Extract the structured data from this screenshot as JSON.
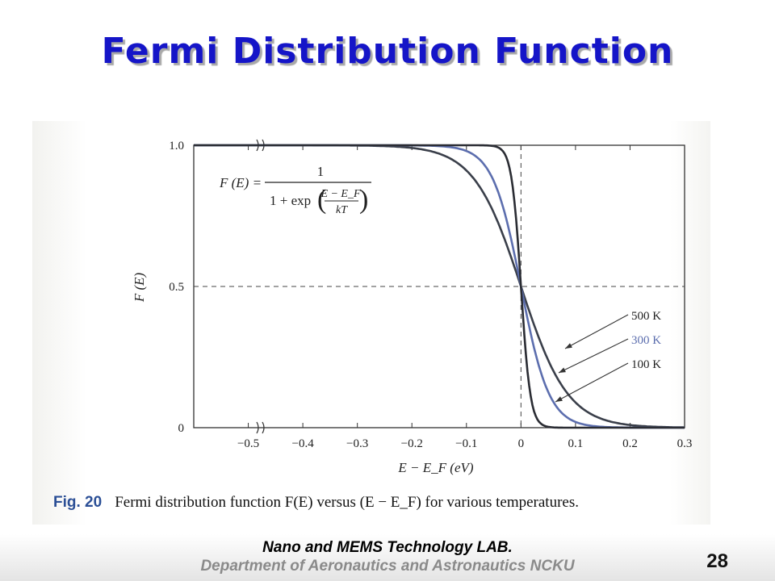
{
  "slide": {
    "title": "Fermi Distribution Function",
    "footer_lab": "Nano and MEMS Technology LAB.",
    "footer_dept": "Department of Aeronautics and Astronautics NCKU",
    "page_number": "28"
  },
  "caption": {
    "label": "Fig. 20",
    "text": "Fermi distribution function F(E) versus (E − E_F) for various temperatures."
  },
  "formula": {
    "lhs": "F (E) =",
    "numerator": "1",
    "denominator_prefix": "1 + exp",
    "exp_numerator": "E − E_F",
    "exp_denominator": "kT"
  },
  "colors": {
    "title": "#1515c8",
    "curve_500K": "#3a3f4a",
    "curve_300K": "#5c6eae",
    "curve_100K": "#2a2c33",
    "caption_label": "#2b4f96"
  },
  "chart_data": {
    "type": "line",
    "xlabel": "E − E_F (eV)",
    "ylabel": "F (E)",
    "xlim": [
      -0.6,
      0.3
    ],
    "ylim": [
      0,
      1.0
    ],
    "x_ticks": [
      -0.5,
      -0.4,
      -0.3,
      -0.2,
      -0.1,
      0,
      0.1,
      0.2,
      0.3
    ],
    "x_tick_labels": [
      "−0.5",
      "−0.4",
      "−0.3",
      "−0.2",
      "−0.1",
      "0",
      "0.1",
      "0.2",
      "0.3"
    ],
    "y_ticks": [
      0,
      0.5,
      1.0
    ],
    "y_tick_labels": [
      "0",
      "0.5",
      "1.0"
    ],
    "reference_lines": {
      "x": 0,
      "y": 0.5
    },
    "grid": false,
    "series": [
      {
        "name": "500 K",
        "temperature_K": 500,
        "color": "#3a3f4a",
        "x": [
          -0.6,
          -0.2,
          -0.15,
          -0.1,
          -0.05,
          0,
          0.05,
          0.1,
          0.15,
          0.2,
          0.3
        ],
        "y": [
          1.0,
          0.99,
          0.97,
          0.91,
          0.76,
          0.5,
          0.24,
          0.09,
          0.03,
          0.01,
          0.001
        ]
      },
      {
        "name": "300 K",
        "temperature_K": 300,
        "color": "#5c6eae",
        "x": [
          -0.6,
          -0.15,
          -0.1,
          -0.05,
          0,
          0.05,
          0.1,
          0.15,
          0.2,
          0.3
        ],
        "y": [
          1.0,
          1.0,
          0.98,
          0.88,
          0.5,
          0.12,
          0.02,
          0.003,
          0.0,
          0.0
        ]
      },
      {
        "name": "100 K",
        "temperature_K": 100,
        "color": "#2a2c33",
        "x": [
          -0.6,
          -0.05,
          -0.02,
          0,
          0.02,
          0.05,
          0.1,
          0.3
        ],
        "y": [
          1.0,
          1.0,
          0.91,
          0.5,
          0.09,
          0.003,
          0.0,
          0.0
        ]
      }
    ],
    "legend": "right"
  }
}
